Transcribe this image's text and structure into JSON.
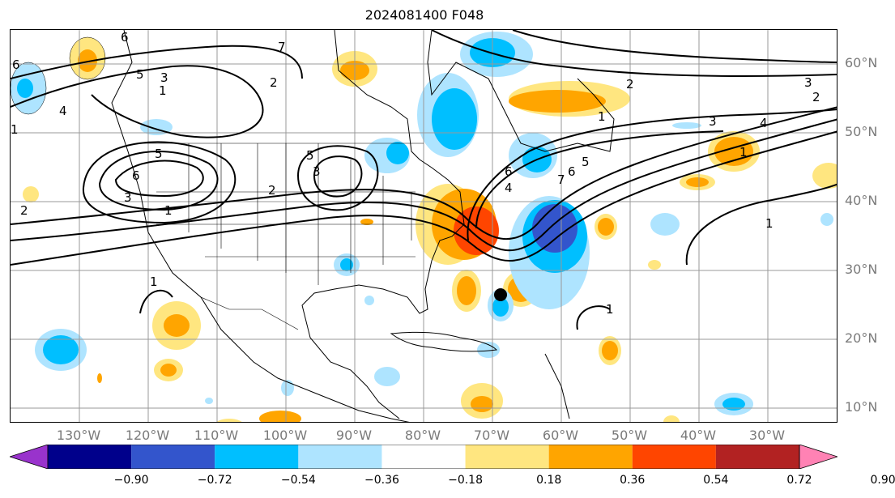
{
  "title": "2024081400 F048",
  "lon_labels": [
    "130°W",
    "120°W",
    "110°W",
    "100°W",
    "90°W",
    "80°W",
    "70°W",
    "60°W",
    "50°W",
    "40°W",
    "30°W"
  ],
  "lat_labels": [
    "60°N",
    "50°N",
    "40°N",
    "30°N",
    "20°N",
    "10°N"
  ],
  "colorbar": {
    "tick_labels": [
      "−0.90",
      "−0.72",
      "−0.54",
      "−0.36",
      "−0.18",
      "0.18",
      "0.36",
      "0.54",
      "0.72",
      "0.90"
    ],
    "colors": [
      "#9933cc",
      "#00008b",
      "#3355cc",
      "#00bfff",
      "#aee4ff",
      "#ffffff",
      "#ffe680",
      "#ffa500",
      "#ff4500",
      "#b22222",
      "#ff82b4"
    ]
  },
  "contour_labels": [
    "6",
    "5",
    "3",
    "1",
    "7",
    "2",
    "4",
    "6",
    "5",
    "3",
    "2",
    "1",
    "5",
    "3",
    "2",
    "6",
    "4",
    "1",
    "2",
    "1",
    "3",
    "4",
    "5",
    "6",
    "7",
    "1",
    "1",
    "1",
    "3",
    "2",
    "6",
    "1"
  ],
  "storm_marker": "black-dot"
}
